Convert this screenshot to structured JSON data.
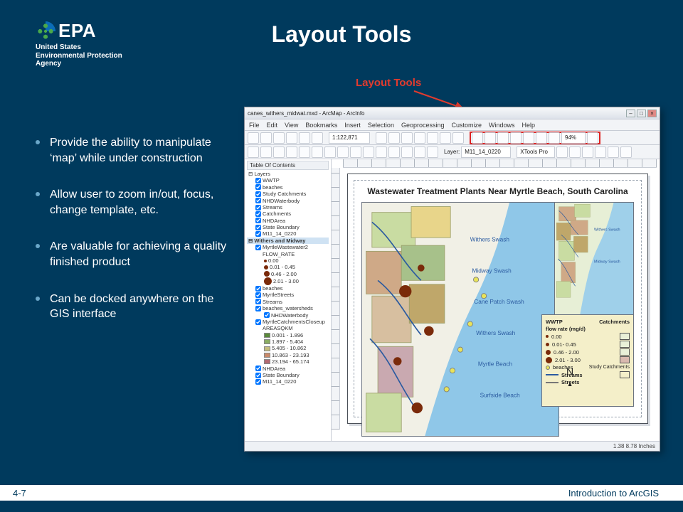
{
  "logo": {
    "acronym": "EPA",
    "line1": "United States",
    "line2": "Environmental Protection",
    "line3": "Agency"
  },
  "title": "Layout Tools",
  "callout": "Layout Tools",
  "bullets": [
    "Provide the ability to manipulate ‘map’ while under construction",
    "Allow user to zoom in/out, focus, change template, etc.",
    "Are valuable for achieving a quality finished product",
    "Can be docked anywhere on the GIS interface"
  ],
  "footer": {
    "page": "4-7",
    "course": "Introduction to ArcGIS"
  },
  "arcmap": {
    "window_title": "canes_withers_midwat.mxd - ArcMap - ArcInfo",
    "menu": [
      "File",
      "Edit",
      "View",
      "Bookmarks",
      "Insert",
      "Selection",
      "Geoprocessing",
      "Customize",
      "Windows",
      "Help"
    ],
    "scale": "1:122,871",
    "zoom_pct": "94%",
    "layer_dd": "M11_14_0220",
    "xtools": "XTools Pro",
    "toc_title": "Table Of Contents",
    "group_layers": "Layers",
    "group_wh": "Withers and Midway",
    "layers_top": [
      "WWTP",
      "beaches",
      "Study Catchments",
      "NHDWaterbody",
      "Streams",
      "Catchments",
      "NHDArea",
      "State Boundary",
      "M11_14_0220"
    ],
    "mw_layer": "MyrtleWastewater2",
    "mw_field": "FLOW_RATE",
    "mw_classes": [
      {
        "label": "0.00",
        "size": 4,
        "color": "#7a2a0a"
      },
      {
        "label": "0.01 - 0.45",
        "size": 6,
        "color": "#7a2a0a"
      },
      {
        "label": "0.46 - 2.00",
        "size": 8,
        "color": "#7a2a0a"
      },
      {
        "label": "2.01 - 3.00",
        "size": 11,
        "color": "#7a2a0a"
      }
    ],
    "more_layers": [
      "beaches",
      "MyrtleStreets",
      "Streams"
    ],
    "bw_layer": "beaches_watersheds",
    "bw_sub": "NHDWaterbody",
    "area_field": "AREASQKM",
    "area_classes": [
      {
        "label": "0.001 - 1.896",
        "color": "#5a8a3a"
      },
      {
        "label": "1.897 - 5.404",
        "color": "#8aad63"
      },
      {
        "label": "5.405 - 10.862",
        "color": "#c4bd7e"
      },
      {
        "label": "10.863 - 23.193",
        "color": "#c98a6a"
      },
      {
        "label": "23.194 - 65.174",
        "color": "#b36a72"
      }
    ],
    "bottom_layers": [
      "NHDArea",
      "State Boundary",
      "M11_14_0220"
    ],
    "close_layer": "MyrtleCatchmentsCloseup",
    "status": "1.38  8.78 Inches",
    "map_title": "Wastewater Treatment Plants Near Myrtle Beach, South Carolina",
    "legend": {
      "h1": "WWTP",
      "h1b": "Catchments",
      "h2": "flow rate (mg/d)",
      "flow": [
        {
          "label": "0.00",
          "size": 4
        },
        {
          "label": "0.01- 0.45",
          "size": 5
        },
        {
          "label": "0.46 - 2.00",
          "size": 7
        },
        {
          "label": "2.01 - 3.00",
          "size": 9
        }
      ],
      "catch_colors": [
        "#e9f0d8",
        "#e9f0d8",
        "#e9f0d8",
        "#d9b9af"
      ],
      "beaches": "beaches",
      "study": "Study Catchments",
      "streams": "Streams",
      "streets": "Streets"
    },
    "main_map": {
      "ocean": "#8fc7e8",
      "land": "#f1f0e6",
      "patch_colors": [
        "#c9dca2",
        "#e8d58a",
        "#cfa987",
        "#a7c18a",
        "#d7bfa0",
        "#bfa76a",
        "#c9a9b0"
      ],
      "labels": [
        "Withers Swash",
        "Midway Swash",
        "Cane Patch Swash",
        "Withers Swash",
        "Myrtle Beach",
        "Surfside Beach"
      ],
      "wwtp_points": [
        [
          0.22,
          0.38,
          9
        ],
        [
          0.3,
          0.28,
          5
        ],
        [
          0.34,
          0.55,
          7
        ],
        [
          0.18,
          0.68,
          6
        ],
        [
          0.28,
          0.88,
          8
        ]
      ],
      "beach_points": [
        [
          0.58,
          0.33
        ],
        [
          0.62,
          0.4
        ],
        [
          0.55,
          0.52
        ],
        [
          0.5,
          0.63
        ],
        [
          0.46,
          0.72
        ],
        [
          0.43,
          0.8
        ]
      ]
    },
    "inset_map": {
      "ocean": "#9fd0ea",
      "land": "#e7efd6",
      "patch_colors": [
        "#cfa987",
        "#c9dca2",
        "#bfa76a"
      ],
      "labels": [
        "Withers Swash",
        "Midway Swash"
      ]
    }
  }
}
